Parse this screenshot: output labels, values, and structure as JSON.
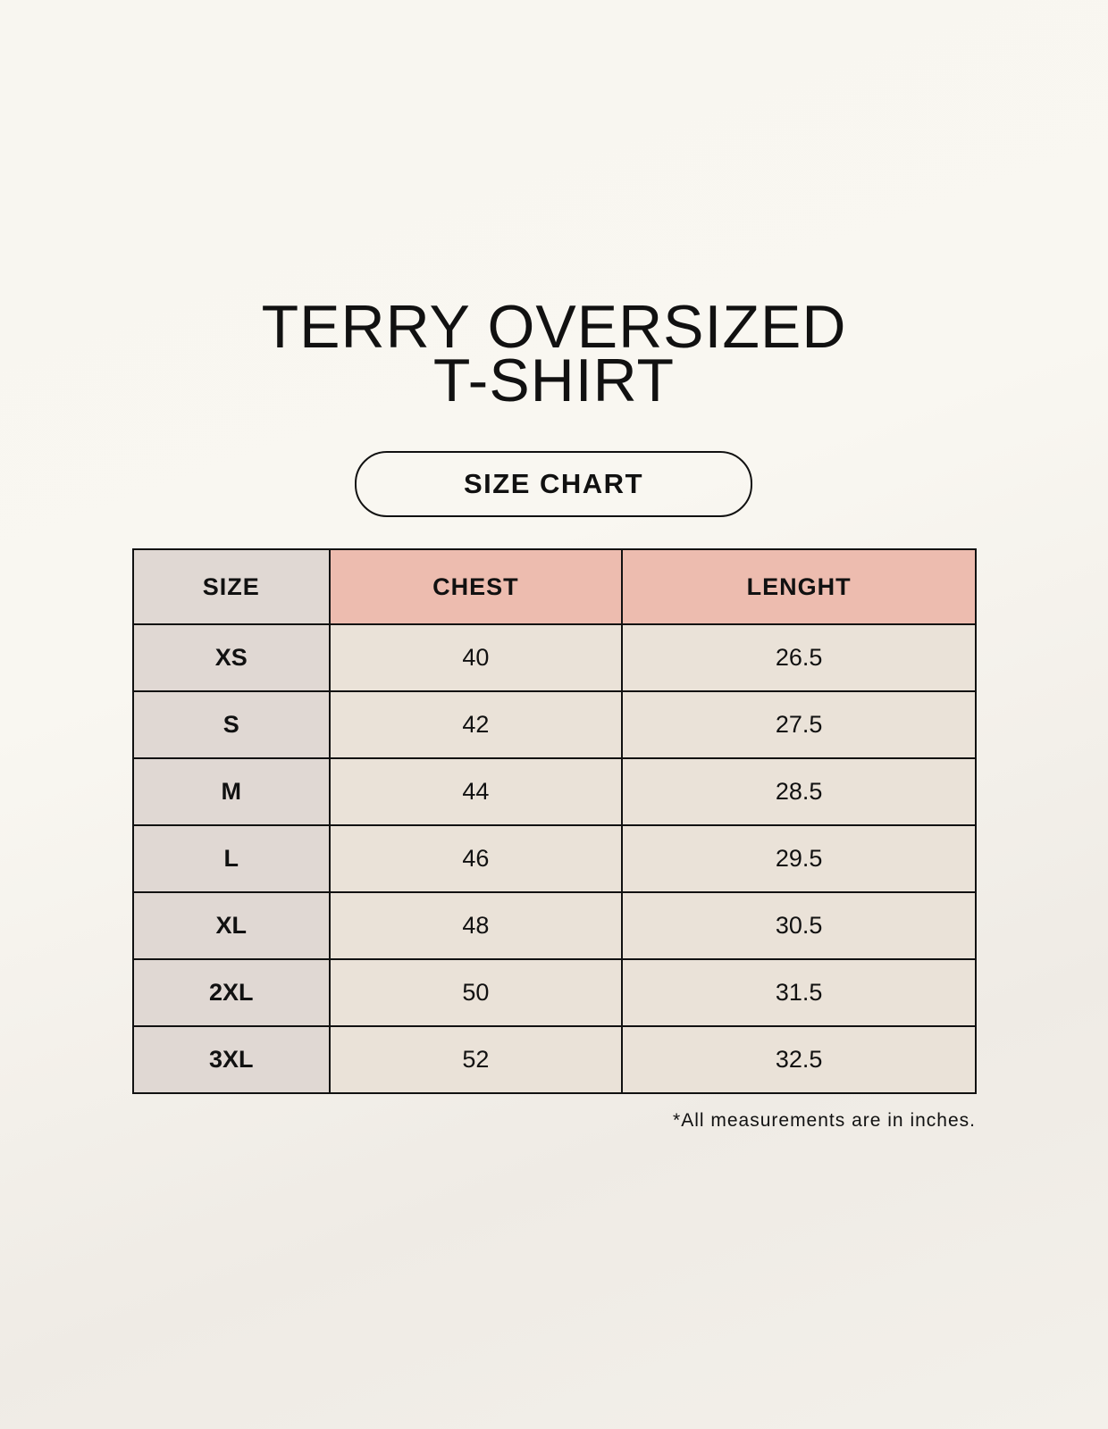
{
  "title": {
    "line1": "TERRY OVERSIZED",
    "line2": "T-SHIRT"
  },
  "badge": "SIZE CHART",
  "colors": {
    "header_size": "#e0d8d3",
    "header_accent": "#edbcaf",
    "cell": "#eae2d8"
  },
  "table": {
    "headers": [
      "SIZE",
      "CHEST",
      "LENGHT"
    ],
    "rows": [
      [
        "XS",
        "40",
        "26.5"
      ],
      [
        "S",
        "42",
        "27.5"
      ],
      [
        "M",
        "44",
        "28.5"
      ],
      [
        "L",
        "46",
        "29.5"
      ],
      [
        "XL",
        "48",
        "30.5"
      ],
      [
        "2XL",
        "50",
        "31.5"
      ],
      [
        "3XL",
        "52",
        "32.5"
      ]
    ]
  },
  "note": "*All measurements are in inches."
}
